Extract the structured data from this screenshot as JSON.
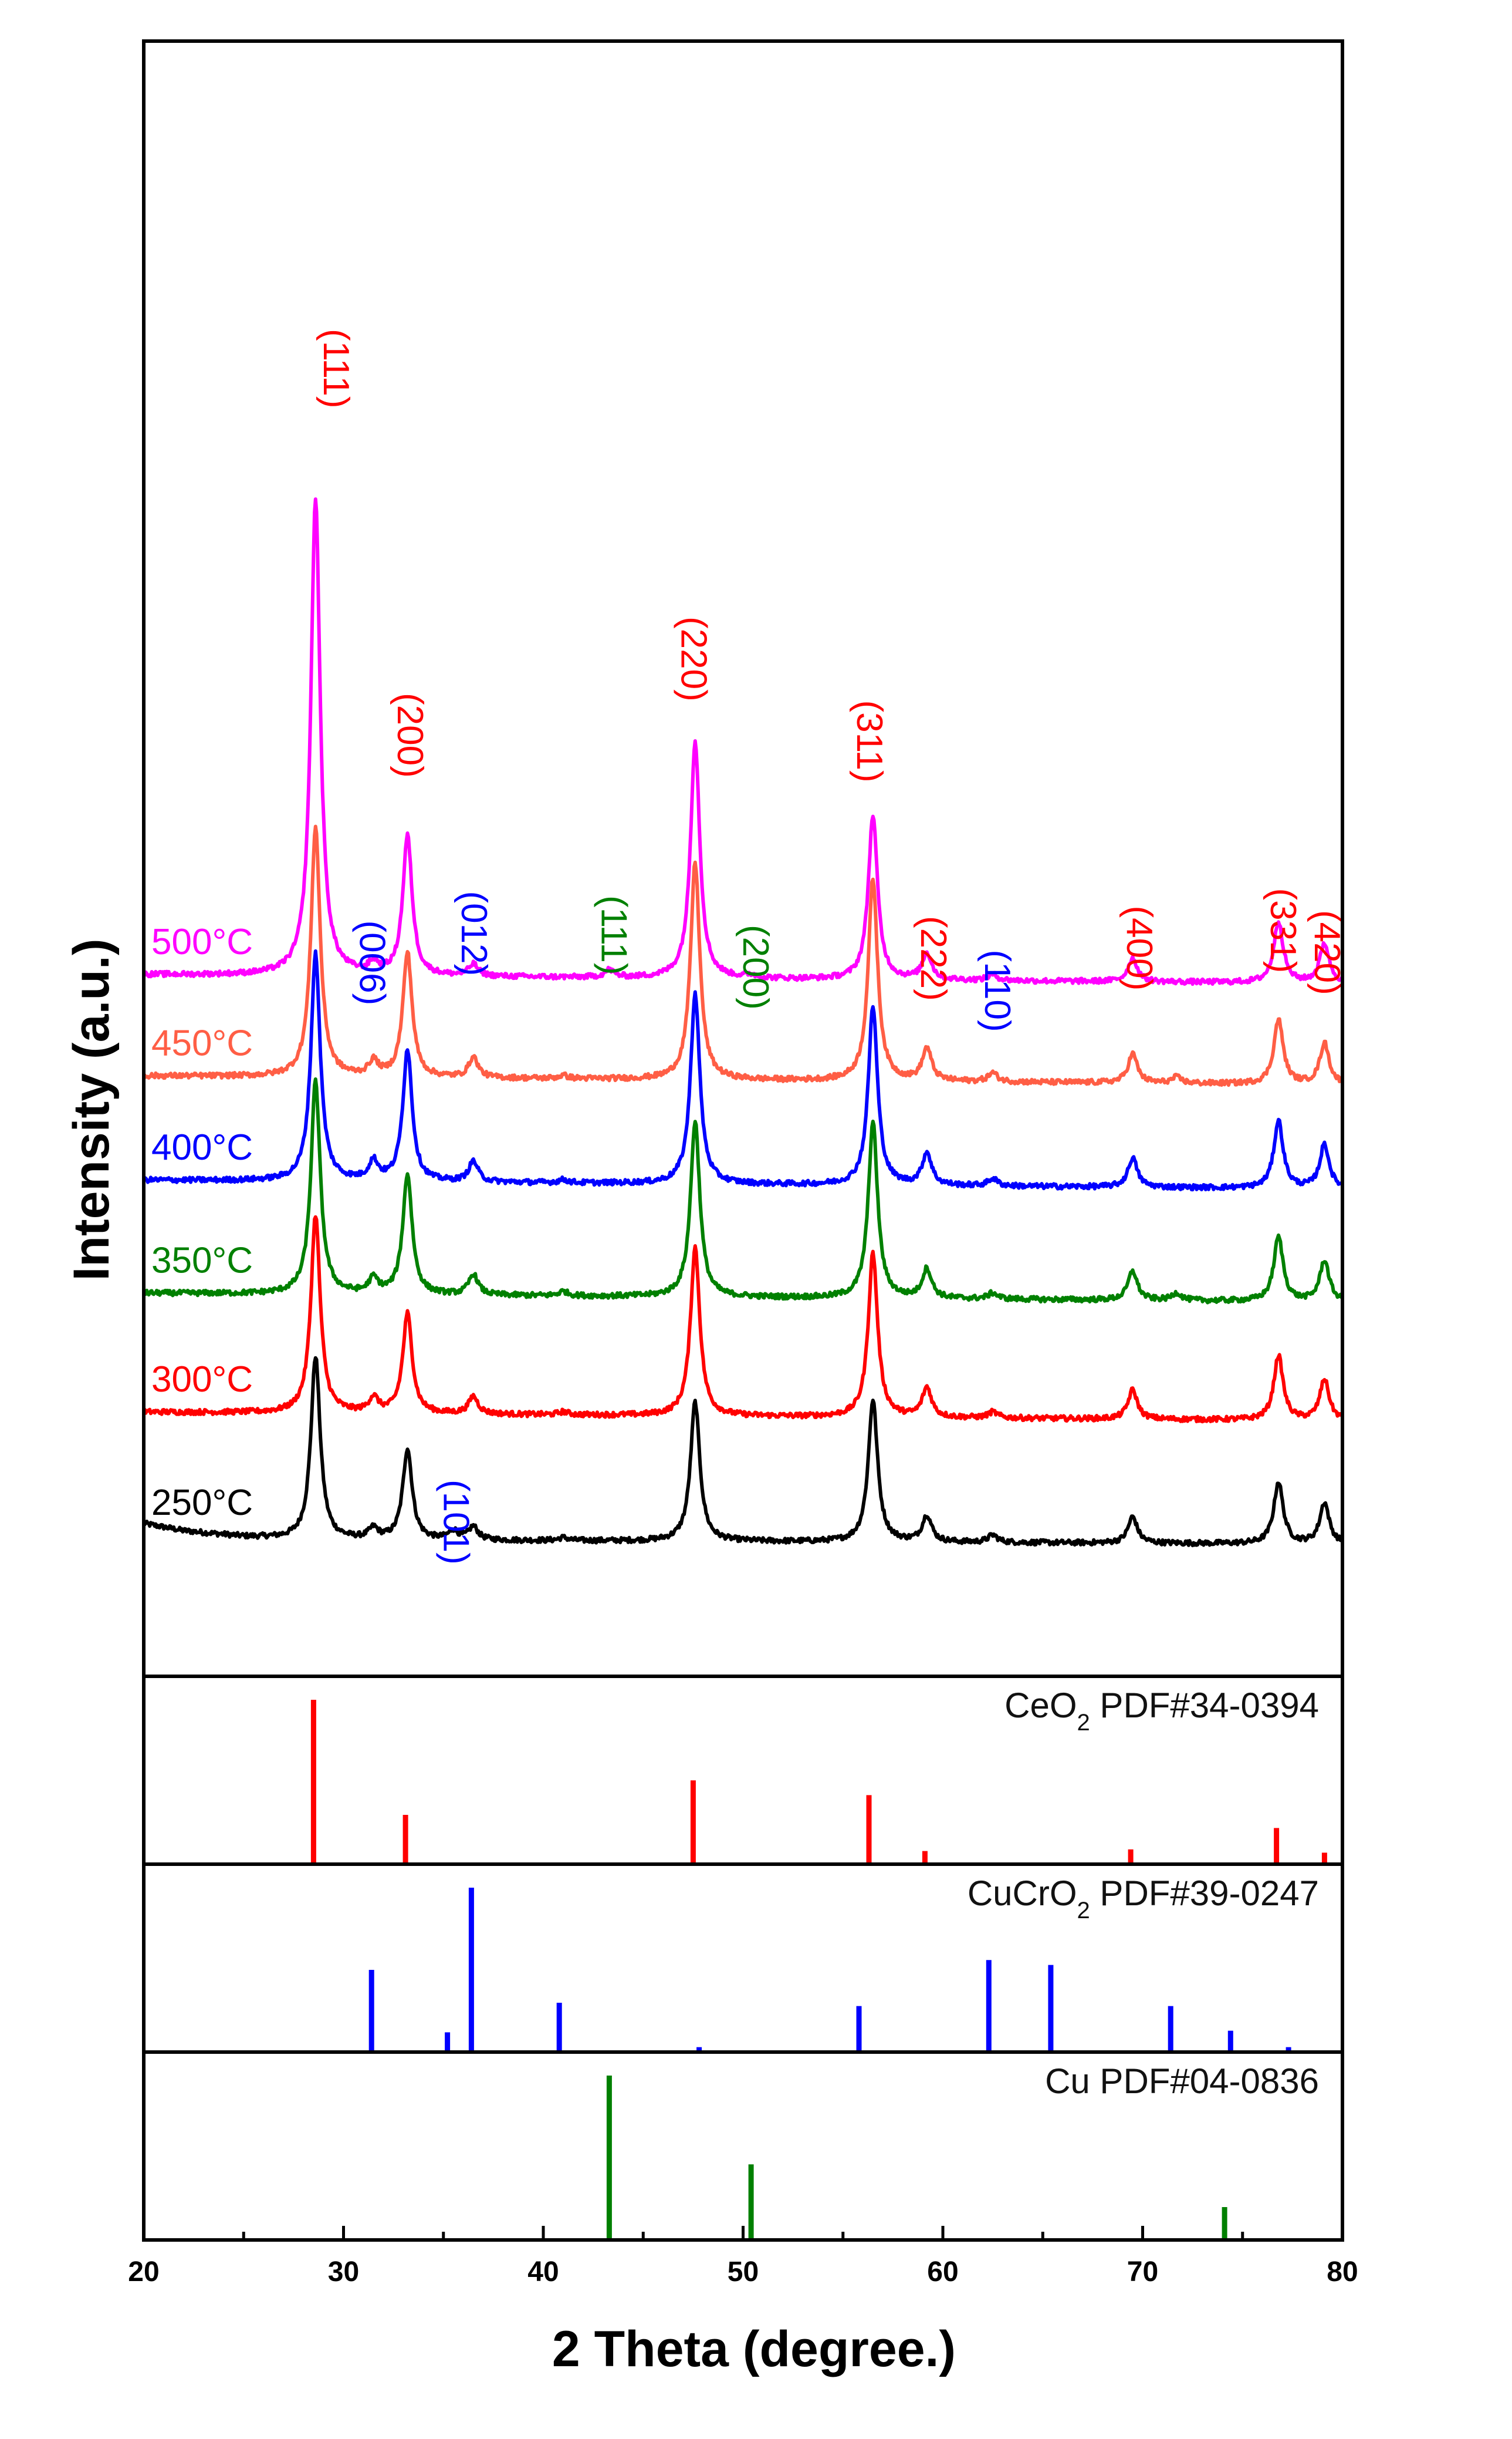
{
  "chart_data": {
    "type": "line",
    "title": "",
    "xlabel": "2 Theta (degree.)",
    "ylabel": "Intensity (a.u.)",
    "xlim": [
      20,
      80
    ],
    "xticks": [
      "20",
      "30",
      "40",
      "50",
      "60",
      "70",
      "80"
    ],
    "peak_width": 0.28,
    "series": [
      {
        "name": "250°C",
        "label": "250",
        "color": "#000000",
        "offset": 0.0,
        "bg": [
          [
            20,
            0.14
          ],
          [
            22,
            0.09
          ],
          [
            25,
            0.05
          ],
          [
            28,
            0.03
          ],
          [
            80,
            0.0
          ]
        ],
        "peaks": [
          [
            28.6,
            1.25
          ],
          [
            31.5,
            0.07
          ],
          [
            33.2,
            0.62
          ],
          [
            35.5,
            0.06
          ],
          [
            36.5,
            0.09
          ],
          [
            41,
            0.02
          ],
          [
            47.6,
            0.95
          ],
          [
            56.5,
            0.97
          ],
          [
            59.2,
            0.18
          ],
          [
            62.5,
            0.05
          ],
          [
            69.5,
            0.18
          ],
          [
            76.8,
            0.42
          ],
          [
            79.1,
            0.28
          ]
        ]
      },
      {
        "name": "300°C",
        "label": "300",
        "color": "#ff0000",
        "offset": 0.84,
        "bg": [
          [
            20,
            0.06
          ],
          [
            80,
            0.0
          ]
        ],
        "peaks": [
          [
            28.6,
            1.35
          ],
          [
            31.5,
            0.1
          ],
          [
            33.2,
            0.68
          ],
          [
            36.5,
            0.12
          ],
          [
            41,
            0.02
          ],
          [
            47.6,
            1.15
          ],
          [
            56.5,
            1.12
          ],
          [
            59.2,
            0.2
          ],
          [
            62.5,
            0.04
          ],
          [
            69.5,
            0.2
          ],
          [
            76.8,
            0.44
          ],
          [
            79.1,
            0.28
          ]
        ]
      },
      {
        "name": "350°C",
        "label": "350",
        "color": "#008000",
        "offset": 1.65,
        "bg": [
          [
            20,
            0.06
          ],
          [
            80,
            0.0
          ]
        ],
        "peaks": [
          [
            28.6,
            1.45
          ],
          [
            31.5,
            0.1
          ],
          [
            33.2,
            0.82
          ],
          [
            36.5,
            0.14
          ],
          [
            41,
            0.03
          ],
          [
            47.6,
            1.2
          ],
          [
            56.5,
            1.2
          ],
          [
            59.2,
            0.2
          ],
          [
            62.5,
            0.04
          ],
          [
            69.5,
            0.2
          ],
          [
            71.7,
            0.05
          ],
          [
            76.8,
            0.44
          ],
          [
            79.1,
            0.28
          ]
        ]
      },
      {
        "name": "400°C",
        "label": "400",
        "color": "#0000ff",
        "offset": 2.42,
        "bg": [
          [
            20,
            0.06
          ],
          [
            80,
            0.0
          ]
        ],
        "peaks": [
          [
            28.6,
            1.55
          ],
          [
            31.5,
            0.13
          ],
          [
            33.2,
            0.9
          ],
          [
            36.5,
            0.14
          ],
          [
            41,
            0.02
          ],
          [
            47.6,
            1.3
          ],
          [
            56.5,
            1.22
          ],
          [
            59.2,
            0.22
          ],
          [
            62.5,
            0.05
          ],
          [
            69.5,
            0.2
          ],
          [
            76.8,
            0.46
          ],
          [
            79.1,
            0.3
          ]
        ]
      },
      {
        "name": "450°C",
        "label": "450",
        "color": "#ff5e45",
        "offset": 3.13,
        "bg": [
          [
            20,
            0.06
          ],
          [
            80,
            0.0
          ]
        ],
        "peaks": [
          [
            28.6,
            1.7
          ],
          [
            31.5,
            0.1
          ],
          [
            33.2,
            0.85
          ],
          [
            36.5,
            0.14
          ],
          [
            41,
            0.02
          ],
          [
            47.6,
            1.48
          ],
          [
            56.5,
            1.38
          ],
          [
            59.2,
            0.22
          ],
          [
            62.5,
            0.06
          ],
          [
            69.5,
            0.2
          ],
          [
            71.7,
            0.04
          ],
          [
            76.8,
            0.44
          ],
          [
            79.1,
            0.28
          ]
        ]
      },
      {
        "name": "500°C",
        "label": "500",
        "color": "#ff00ff",
        "offset": 3.82,
        "bg": [
          [
            20,
            0.06
          ],
          [
            80,
            0.0
          ]
        ],
        "peaks": [
          [
            28.6,
            3.25
          ],
          [
            31.5,
            0.07
          ],
          [
            33.2,
            0.95
          ],
          [
            36.5,
            0.08
          ],
          [
            43.3,
            0.05
          ],
          [
            47.6,
            1.62
          ],
          [
            50.4,
            0.02
          ],
          [
            56.5,
            1.12
          ],
          [
            59.2,
            0.18
          ],
          [
            62.5,
            0.04
          ],
          [
            69.5,
            0.16
          ],
          [
            76.8,
            0.42
          ],
          [
            79.1,
            0.27
          ]
        ]
      }
    ],
    "peak_annotations": [
      {
        "text": "(111)",
        "x": 29.5,
        "y": 8.28,
        "color": "#ff0000"
      },
      {
        "text": "(200)",
        "x": 33.2,
        "y": 5.8,
        "color": "#ff0000"
      },
      {
        "text": "(006)",
        "x": 31.3,
        "y": 4.25,
        "color": "#0000ff"
      },
      {
        "text": "(012)",
        "x": 36.4,
        "y": 4.45,
        "color": "#0000ff"
      },
      {
        "text": "(111)",
        "x": 43.4,
        "y": 4.42,
        "color": "#008000"
      },
      {
        "text": "(200)",
        "x": 50.5,
        "y": 4.22,
        "color": "#008000"
      },
      {
        "text": "(220)",
        "x": 47.4,
        "y": 6.32,
        "color": "#ff0000"
      },
      {
        "text": "(311)",
        "x": 56.2,
        "y": 5.75,
        "color": "#ff0000"
      },
      {
        "text": "(222)",
        "x": 59.4,
        "y": 4.28,
        "color": "#ff0000"
      },
      {
        "text": "(110)",
        "x": 62.6,
        "y": 4.05,
        "color": "#0000ff"
      },
      {
        "text": "(400)",
        "x": 69.7,
        "y": 4.35,
        "color": "#ff0000"
      },
      {
        "text": "(331)",
        "x": 76.9,
        "y": 4.47,
        "color": "#ff0000"
      },
      {
        "text": "(420)",
        "x": 79.1,
        "y": 4.32,
        "color": "#ff0000"
      },
      {
        "text": "(101)",
        "x": 35.5,
        "y": 0.44,
        "color": "#0000ff"
      }
    ],
    "reference_panels": [
      {
        "name": "CeO2",
        "label_prefix": "CeO",
        "label_sub": "2",
        "label_suffix": " PDF#34-0394",
        "color": "#ff0000",
        "lines": [
          [
            28.5,
            100
          ],
          [
            33.1,
            30
          ],
          [
            47.5,
            51
          ],
          [
            56.3,
            42
          ],
          [
            59.1,
            8
          ],
          [
            69.4,
            9
          ],
          [
            76.7,
            22
          ],
          [
            79.1,
            7
          ]
        ]
      },
      {
        "name": "CuCrO2",
        "label_prefix": "CuCrO",
        "label_sub": "2",
        "label_suffix": " PDF#39-0247",
        "color": "#0000ff",
        "lines": [
          [
            31.4,
            50
          ],
          [
            35.2,
            12
          ],
          [
            36.4,
            100
          ],
          [
            40.8,
            30
          ],
          [
            47.8,
            3
          ],
          [
            55.8,
            28
          ],
          [
            62.3,
            56
          ],
          [
            65.4,
            53
          ],
          [
            71.4,
            28
          ],
          [
            74.4,
            13
          ],
          [
            77.3,
            3
          ]
        ]
      },
      {
        "name": "Cu",
        "label_prefix": "Cu PDF#04-0836",
        "label_sub": "",
        "label_suffix": "",
        "color": "#008000",
        "lines": [
          [
            43.3,
            100
          ],
          [
            50.4,
            46
          ],
          [
            74.1,
            20
          ]
        ]
      }
    ]
  }
}
